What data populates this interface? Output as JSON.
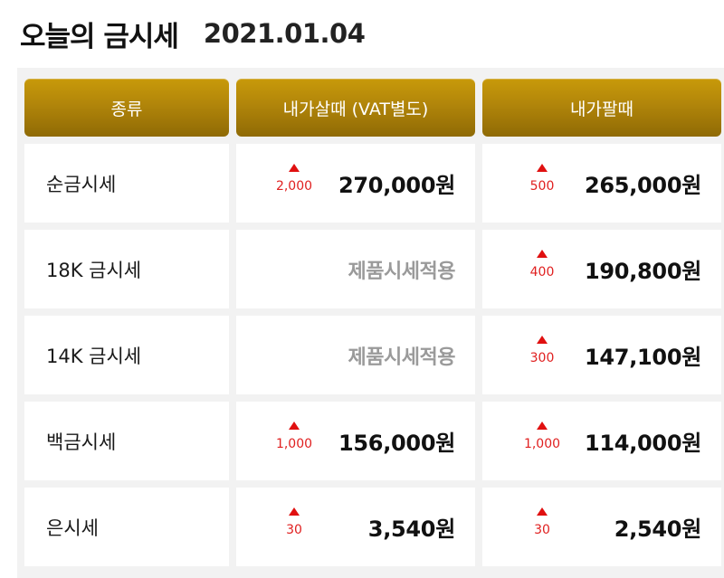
{
  "title": "오늘의 금시세",
  "date": "2021.01.04",
  "headers": [
    "종류",
    "내가살때 (VAT별도)",
    "내가팔때"
  ],
  "rows": [
    {
      "label": "순금시세",
      "buy": {
        "change": "2,000",
        "price": "270,000원",
        "note": ""
      },
      "sell": {
        "change": "500",
        "price": "265,000원"
      }
    },
    {
      "label": "18K 금시세",
      "buy": {
        "change": "",
        "price": "",
        "note": "제품시세적용"
      },
      "sell": {
        "change": "400",
        "price": "190,800원"
      }
    },
    {
      "label": "14K 금시세",
      "buy": {
        "change": "",
        "price": "",
        "note": "제품시세적용"
      },
      "sell": {
        "change": "300",
        "price": "147,100원"
      }
    },
    {
      "label": "백금시세",
      "buy": {
        "change": "1,000",
        "price": "156,000원",
        "note": ""
      },
      "sell": {
        "change": "1,000",
        "price": "114,000원"
      }
    },
    {
      "label": "은시세",
      "buy": {
        "change": "30",
        "price": "3,540원",
        "note": ""
      },
      "sell": {
        "change": "30",
        "price": "2,540원"
      }
    }
  ],
  "colors": {
    "header_gold": "#b1850a",
    "up_red": "#e01010",
    "note_gray": "#9a9a9a"
  },
  "icons": {
    "up": "triangle-up-icon"
  }
}
